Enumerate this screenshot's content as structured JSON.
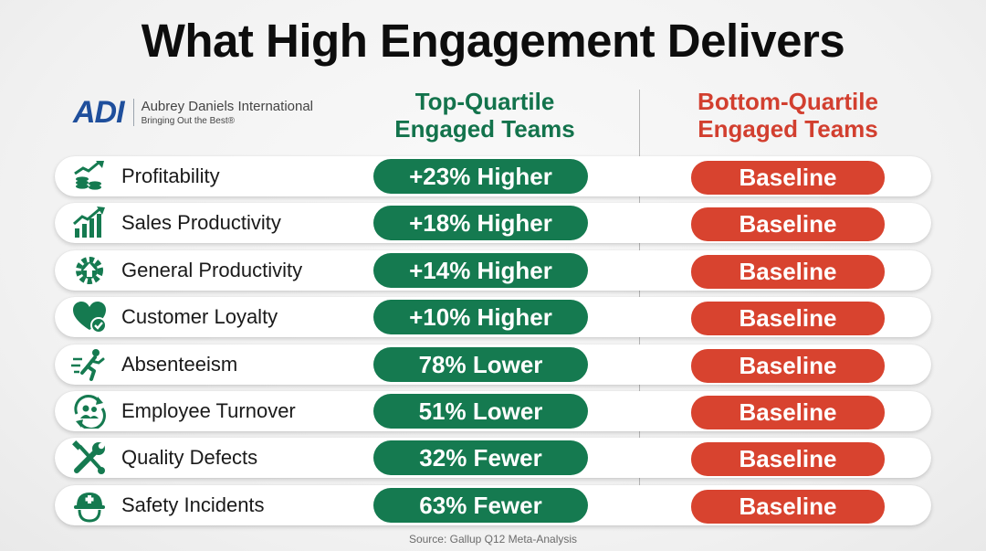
{
  "title": "What High Engagement Delivers",
  "logo": {
    "mark": "ADI",
    "name": "Aubrey Daniels International",
    "tagline": "Bringing Out the Best®"
  },
  "columns": {
    "top": [
      "Top-Quartile",
      "Engaged Teams"
    ],
    "bottom": [
      "Bottom-Quartile",
      "Engaged Teams"
    ]
  },
  "source": "Source: Gallup Q12 Meta-Analysis",
  "colors": {
    "green": "#157a50",
    "red": "#d8432f",
    "heading_green": "#13734c",
    "heading_red": "#d23f2f"
  },
  "chart_data": {
    "type": "table",
    "title": "What High Engagement Delivers",
    "columns": [
      "Top-Quartile Engaged Teams",
      "Bottom-Quartile Engaged Teams"
    ],
    "rows": [
      {
        "label": "Profitability",
        "icon": "money-growth-icon",
        "top": "+23% Higher",
        "bottom": "Baseline"
      },
      {
        "label": "Sales Productivity",
        "icon": "bar-chart-up-icon",
        "top": "+18% Higher",
        "bottom": "Baseline"
      },
      {
        "label": "General Productivity",
        "icon": "gear-arrow-icon",
        "top": "+14% Higher",
        "bottom": "Baseline"
      },
      {
        "label": "Customer Loyalty",
        "icon": "heart-check-icon",
        "top": "+10% Higher",
        "bottom": "Baseline"
      },
      {
        "label": "Absenteeism",
        "icon": "running-person-icon",
        "top": "78% Lower",
        "bottom": "Baseline"
      },
      {
        "label": "Employee Turnover",
        "icon": "people-cycle-icon",
        "top": "51% Lower",
        "bottom": "Baseline"
      },
      {
        "label": "Quality Defects",
        "icon": "wrench-screwdriver-icon",
        "top": "32% Fewer",
        "bottom": "Baseline"
      },
      {
        "label": "Safety Incidents",
        "icon": "hard-hat-icon",
        "top": "63% Fewer",
        "bottom": "Baseline"
      }
    ]
  }
}
